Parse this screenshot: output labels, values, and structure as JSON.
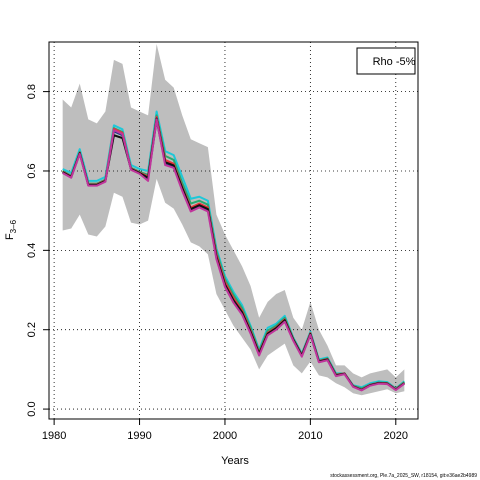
{
  "chart_data": {
    "type": "line",
    "title": "",
    "xlabel": "Years",
    "ylabel_main": "F",
    "ylabel_sub": "3–6",
    "legend": {
      "label": "Rho -5%",
      "position": "top-right"
    },
    "credit": "stockassessment.org, Ple.7a_2025_SW, r18154, git:e36ae2b4989",
    "xlim": [
      1979.4,
      2022.6
    ],
    "ylim": [
      -0.025,
      0.925
    ],
    "xticks": [
      1980,
      1990,
      2000,
      2010,
      2020
    ],
    "yticks": [
      0.0,
      0.2,
      0.4,
      0.6,
      0.8
    ],
    "grid": true,
    "band_color": "#bebebe",
    "x": [
      1981,
      1982,
      1983,
      1984,
      1985,
      1986,
      1987,
      1988,
      1989,
      1990,
      1991,
      1992,
      1993,
      1994,
      1995,
      1996,
      1997,
      1998,
      1999,
      2000,
      2001,
      2002,
      2003,
      2004,
      2005,
      2006,
      2007,
      2008,
      2009,
      2010,
      2011,
      2012,
      2013,
      2014,
      2015,
      2016,
      2017,
      2018,
      2019,
      2020,
      2021
    ],
    "confidence_band": {
      "upper": [
        0.78,
        0.76,
        0.82,
        0.73,
        0.72,
        0.75,
        0.88,
        0.87,
        0.76,
        0.75,
        0.74,
        0.92,
        0.83,
        0.81,
        0.74,
        0.68,
        0.67,
        0.66,
        0.49,
        0.44,
        0.4,
        0.36,
        0.31,
        0.23,
        0.27,
        0.29,
        0.3,
        0.23,
        0.2,
        0.27,
        0.2,
        0.16,
        0.11,
        0.11,
        0.09,
        0.08,
        0.09,
        0.095,
        0.1,
        0.08,
        0.1
      ],
      "lower": [
        0.45,
        0.455,
        0.49,
        0.44,
        0.435,
        0.46,
        0.545,
        0.535,
        0.47,
        0.465,
        0.475,
        0.58,
        0.52,
        0.505,
        0.465,
        0.42,
        0.41,
        0.39,
        0.29,
        0.25,
        0.21,
        0.18,
        0.15,
        0.1,
        0.135,
        0.15,
        0.165,
        0.11,
        0.09,
        0.12,
        0.085,
        0.08,
        0.065,
        0.055,
        0.04,
        0.035,
        0.04,
        0.045,
        0.05,
        0.04,
        0.045
      ]
    },
    "series": [
      {
        "color": "#f5e21b",
        "values": [
          0.6,
          0.585,
          0.645,
          0.565,
          0.565,
          0.575,
          0.705,
          0.695,
          0.605,
          0.595,
          0.585,
          0.735,
          0.625,
          0.615,
          0.555,
          0.505,
          0.515,
          0.505,
          0.385,
          0.315,
          0.275,
          0.245,
          0.195,
          0.14,
          0.19,
          0.205,
          0.225,
          0.175,
          0.135,
          0.19,
          0.12,
          0.125,
          0.085,
          0.09,
          0.058,
          0.048,
          0.06,
          0.065,
          0.065,
          0.05,
          0.065
        ]
      },
      {
        "color": "#1ec8d8",
        "values": [
          0.605,
          0.595,
          0.655,
          0.575,
          0.575,
          0.585,
          0.715,
          0.705,
          0.615,
          0.605,
          0.6,
          0.75,
          0.65,
          0.64,
          0.585,
          0.53,
          0.535,
          0.525,
          0.405,
          0.335,
          0.295,
          0.262,
          0.21,
          0.15,
          0.205,
          0.215,
          0.235,
          0.18,
          0.14,
          0.195,
          0.125,
          0.13,
          0.09,
          0.09,
          0.06,
          0.055,
          0.065,
          0.07,
          0.068,
          0.052,
          0.07
        ]
      },
      {
        "color": "#2aa86f",
        "values": [
          0.6,
          0.588,
          0.648,
          0.568,
          0.568,
          0.578,
          0.708,
          0.698,
          0.608,
          0.598,
          0.59,
          0.74,
          0.638,
          0.628,
          0.57,
          0.518,
          0.525,
          0.515,
          0.398,
          0.328,
          0.288,
          0.255,
          0.205,
          0.146,
          0.198,
          0.21,
          0.23,
          0.178,
          0.138,
          0.192,
          0.122,
          0.128,
          0.088,
          0.09,
          0.059,
          0.052,
          0.062,
          0.067,
          0.066,
          0.051,
          0.068
        ]
      },
      {
        "color": "#e8323c",
        "values": [
          0.598,
          0.586,
          0.646,
          0.566,
          0.566,
          0.576,
          0.706,
          0.696,
          0.606,
          0.596,
          0.586,
          0.736,
          0.628,
          0.618,
          0.56,
          0.508,
          0.518,
          0.508,
          0.39,
          0.32,
          0.28,
          0.248,
          0.198,
          0.142,
          0.192,
          0.206,
          0.226,
          0.176,
          0.136,
          0.191,
          0.121,
          0.126,
          0.086,
          0.09,
          0.058,
          0.049,
          0.061,
          0.066,
          0.065,
          0.05,
          0.066
        ]
      },
      {
        "color": "#1f3c88",
        "values": [
          0.596,
          0.584,
          0.644,
          0.564,
          0.564,
          0.574,
          0.7,
          0.69,
          0.604,
          0.594,
          0.58,
          0.728,
          0.62,
          0.612,
          0.555,
          0.502,
          0.512,
          0.502,
          0.382,
          0.312,
          0.272,
          0.242,
          0.193,
          0.138,
          0.188,
          0.203,
          0.222,
          0.174,
          0.134,
          0.188,
          0.119,
          0.124,
          0.084,
          0.089,
          0.057,
          0.048,
          0.06,
          0.065,
          0.064,
          0.049,
          0.065
        ]
      },
      {
        "color": "#111111",
        "values": [
          0.597,
          0.585,
          0.645,
          0.565,
          0.565,
          0.575,
          0.69,
          0.683,
          0.605,
          0.595,
          0.583,
          0.732,
          0.622,
          0.614,
          0.557,
          0.504,
          0.514,
          0.504,
          0.384,
          0.314,
          0.274,
          0.244,
          0.195,
          0.14,
          0.19,
          0.204,
          0.224,
          0.175,
          0.135,
          0.189,
          0.12,
          0.125,
          0.085,
          0.089,
          0.057,
          0.048,
          0.06,
          0.065,
          0.064,
          0.049,
          0.065
        ]
      },
      {
        "color": "#c0359b",
        "values": [
          0.595,
          0.583,
          0.643,
          0.563,
          0.563,
          0.573,
          0.703,
          0.693,
          0.603,
          0.593,
          0.575,
          0.73,
          0.615,
          0.608,
          0.55,
          0.498,
          0.508,
          0.498,
          0.378,
          0.308,
          0.268,
          0.238,
          0.19,
          0.135,
          0.186,
          0.2,
          0.22,
          0.172,
          0.132,
          0.187,
          0.118,
          0.123,
          0.083,
          0.088,
          0.056,
          0.047,
          0.059,
          0.064,
          0.063,
          0.048,
          0.064
        ]
      }
    ]
  }
}
